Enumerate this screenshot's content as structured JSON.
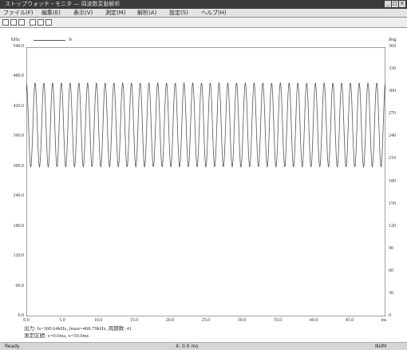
{
  "window": {
    "title": "ストップウォッチ・モニタ — 周波数変動解析",
    "buttons": [
      "_",
      "□",
      "×"
    ]
  },
  "menu": [
    "ファイル(F)",
    "編集(E)",
    "表示(V)",
    "測定(M)",
    "解析(A)",
    "設定(S)",
    "ヘルプ(H)"
  ],
  "toolbar": {
    "icons": [
      "new-icon",
      "open-icon",
      "save-icon",
      "print-icon",
      "zoom-icon",
      "cursor-icon"
    ]
  },
  "plot": {
    "left_unit": "kHz",
    "legend_label": "fs",
    "right_unit": "deg",
    "max_marker": "",
    "bg_color": "#ffffff",
    "line_color": "#555555"
  },
  "chart_data": {
    "type": "line",
    "xlabel": "ms",
    "ylabel": "kHz",
    "y2label": "deg",
    "xlim": [
      0,
      50
    ],
    "ylim": [
      0,
      540
    ],
    "y2lim": [
      0,
      360
    ],
    "x_ticks": [
      "0.0",
      "5.0",
      "10.0",
      "15.0",
      "20.0",
      "25.0",
      "30.0",
      "35.0",
      "40.0",
      "45.0"
    ],
    "y_ticks_left": [
      "0.0",
      "60.0",
      "120.0",
      "180.0",
      "240.0",
      "300.0",
      "360.0",
      "420.0",
      "480.0",
      "540.0"
    ],
    "y_ticks_right": [
      "0",
      "30",
      "60",
      "90",
      "120",
      "150",
      "180",
      "210",
      "240",
      "270",
      "300",
      "330",
      "360"
    ],
    "series": [
      {
        "min": 300,
        "max": 468,
        "cycles": 41
      }
    ],
    "grid": false
  },
  "status": {
    "line1": "出力: fs=300.64kHz, fmax=468.79kHz, 周期数: 41",
    "line2": "測定区間: x=0.0ms, x=50.0ms"
  },
  "bottom": {
    "left": "Ready",
    "mid": "X: 0.0 ms",
    "right": "NUM"
  }
}
